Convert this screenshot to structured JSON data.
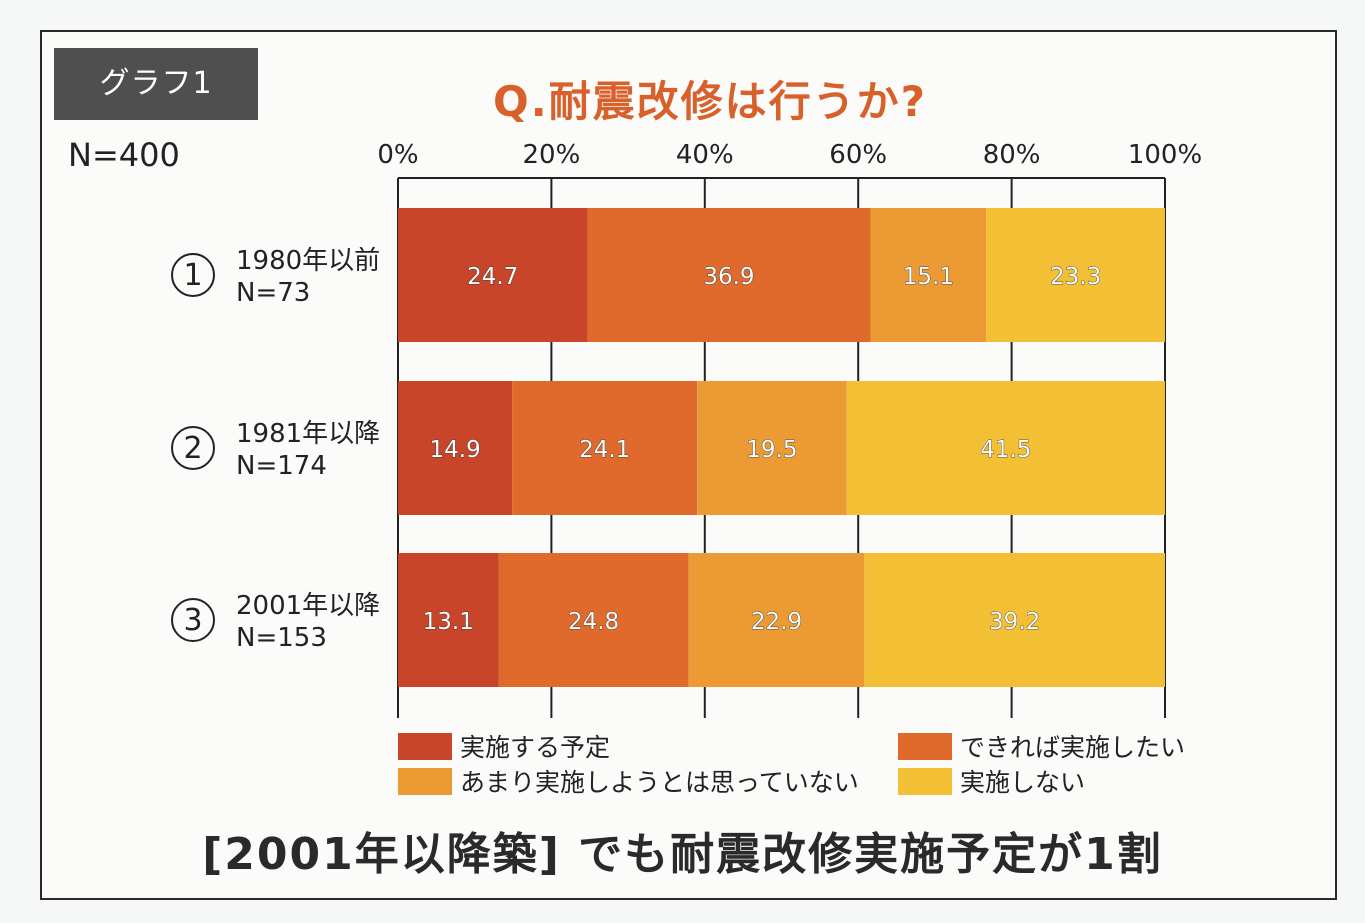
{
  "graph_tag": "グラフ1",
  "title": "Q.耐震改修は行うか?",
  "n_total": "N=400",
  "headline": "[2001年以降築] でも耐震改修実施予定が1割",
  "chart_data": {
    "type": "bar",
    "orientation": "horizontal",
    "stacked": true,
    "xlim": [
      0,
      100
    ],
    "x_ticks": [
      "0%",
      "20%",
      "40%",
      "60%",
      "80%",
      "100%"
    ],
    "grid": true,
    "legend_position": "bottom",
    "categories": [
      {
        "num": "①",
        "label": "1980年以前",
        "n": "N=73"
      },
      {
        "num": "②",
        "label": "1981年以降",
        "n": "N=174"
      },
      {
        "num": "③",
        "label": "2001年以降",
        "n": "N=153"
      }
    ],
    "series": [
      {
        "name": "実施する予定",
        "color": "#c9452a",
        "values": [
          24.7,
          14.9,
          13.1
        ]
      },
      {
        "name": "できれば実施したい",
        "color": "#e06a2c",
        "values": [
          36.9,
          24.1,
          24.8
        ]
      },
      {
        "name": "あまり実施しようとは思っていない",
        "color": "#eb9a34",
        "values": [
          15.1,
          19.5,
          22.9
        ]
      },
      {
        "name": "実施しない",
        "color": "#f2bf35",
        "values": [
          23.3,
          41.5,
          39.2
        ]
      }
    ]
  }
}
